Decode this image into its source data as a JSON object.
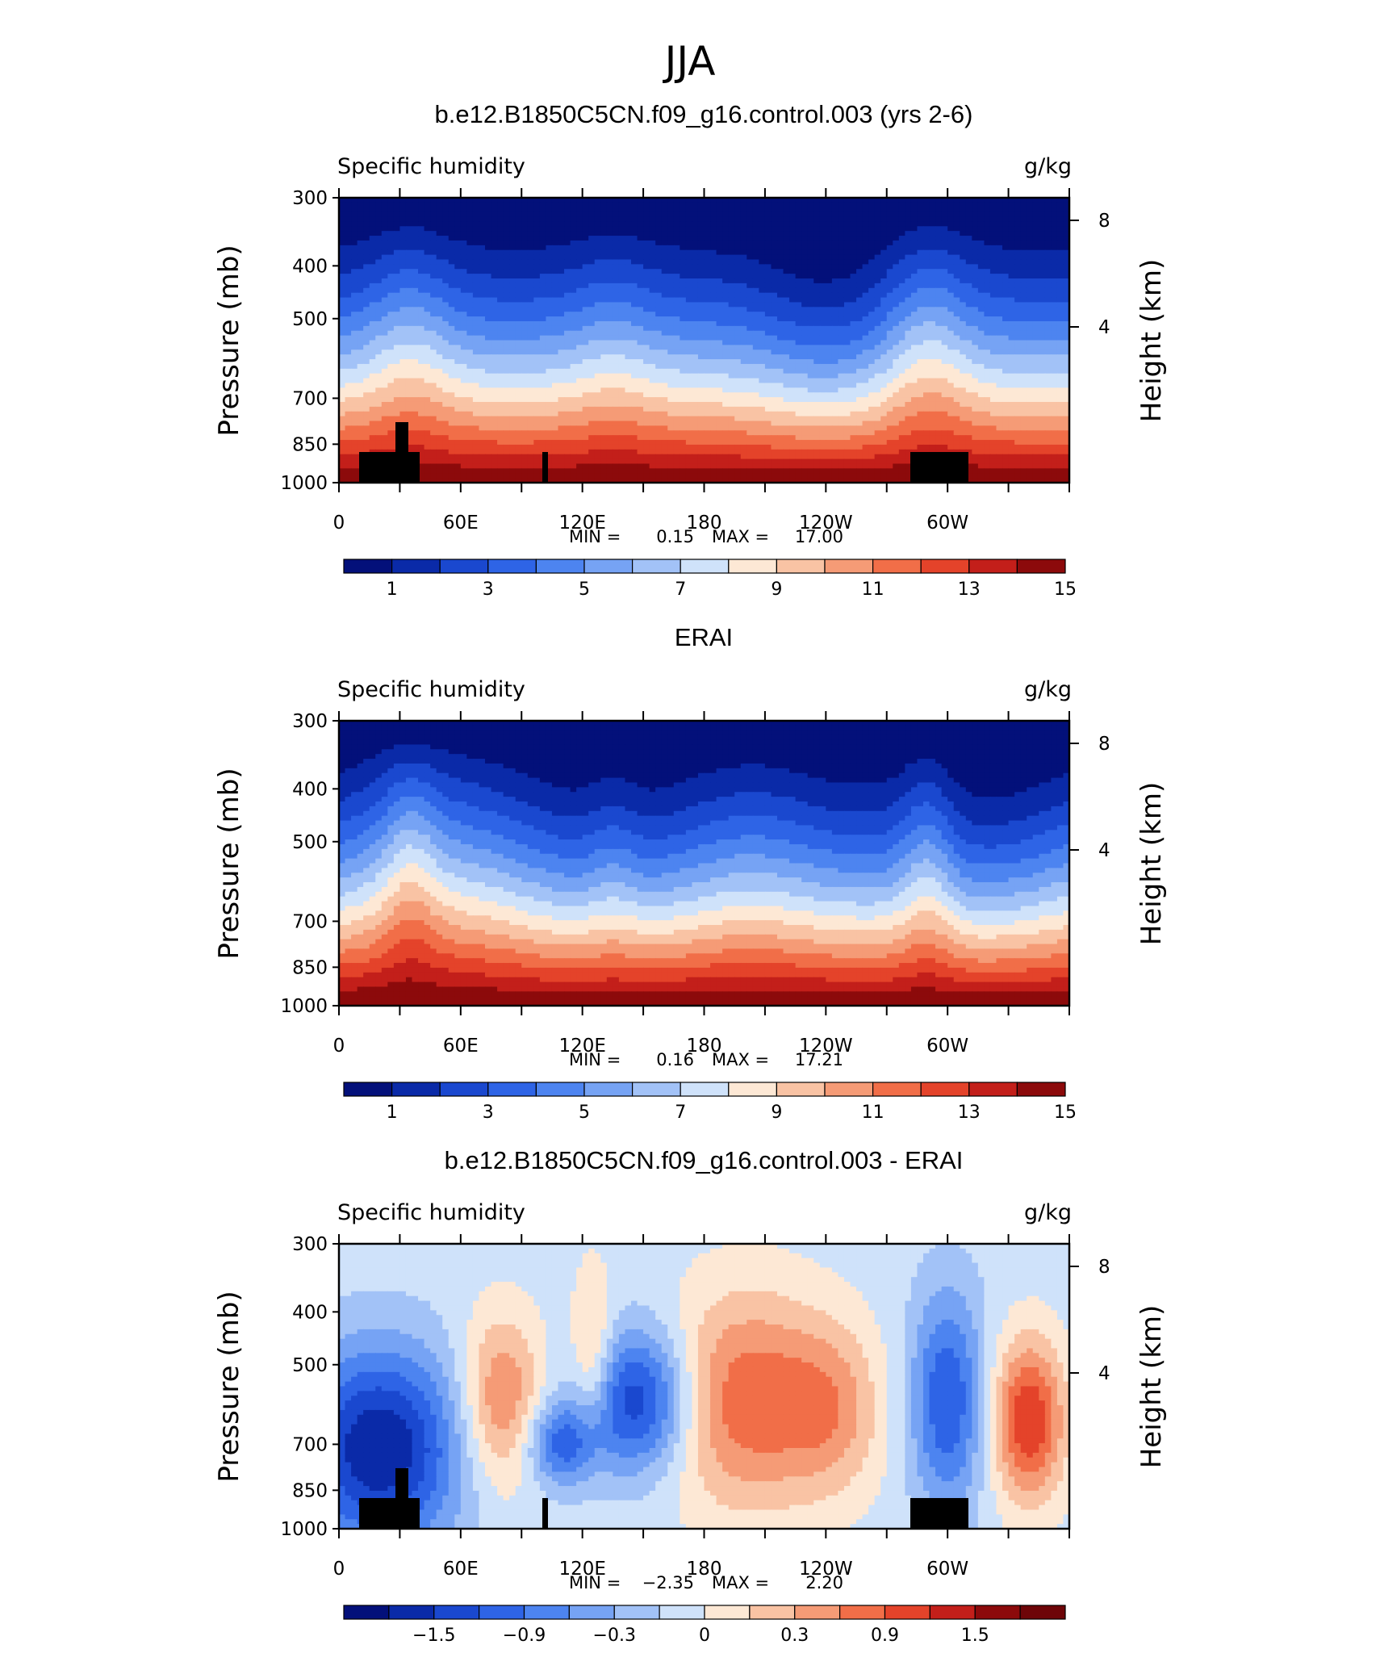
{
  "figure_title": "JJA",
  "chart_data": [
    {
      "type": "heatmap",
      "title": "b.e12.B1850C5CN.f09_g16.control.003 (yrs 2-6)",
      "subtitle_left": "Specific humidity",
      "subtitle_right": "g/kg",
      "ylabel": "Pressure (mb)",
      "ylabel_right": "Height (km)",
      "yticks": [
        300,
        400,
        500,
        700,
        850,
        1000
      ],
      "yticks_right": [
        8,
        4
      ],
      "xticks": [
        "0",
        "60E",
        "120E",
        "180",
        "120W",
        "60W"
      ],
      "xlim_lon": [
        0,
        360
      ],
      "ylim_mb": [
        300,
        1000
      ],
      "stats": {
        "min_label": "MIN =",
        "min": "0.15",
        "max_label": "MAX =",
        "max": "17.00"
      },
      "colorbar": {
        "labels": [
          "1",
          "3",
          "5",
          "7",
          "9",
          "11",
          "13",
          "15"
        ],
        "colors": [
          "#03107a",
          "#0a2aa8",
          "#1a48cf",
          "#2e64e6",
          "#4d84f0",
          "#76a3f4",
          "#a2c2f7",
          "#cfe2fa",
          "#fde8d5",
          "#f9c3a4",
          "#f59b76",
          "#f16e48",
          "#e4432a",
          "#c31f1a",
          "#8c0a0b"
        ]
      },
      "terrain": true
    },
    {
      "type": "heatmap",
      "title": "ERAI",
      "subtitle_left": "Specific humidity",
      "subtitle_right": "g/kg",
      "ylabel": "Pressure (mb)",
      "ylabel_right": "Height (km)",
      "yticks": [
        300,
        400,
        500,
        700,
        850,
        1000
      ],
      "yticks_right": [
        8,
        4
      ],
      "xticks": [
        "0",
        "60E",
        "120E",
        "180",
        "120W",
        "60W"
      ],
      "xlim_lon": [
        0,
        360
      ],
      "ylim_mb": [
        300,
        1000
      ],
      "stats": {
        "min_label": "MIN =",
        "min": "0.16",
        "max_label": "MAX =",
        "max": "17.21"
      },
      "colorbar": {
        "labels": [
          "1",
          "3",
          "5",
          "7",
          "9",
          "11",
          "13",
          "15"
        ],
        "colors": [
          "#03107a",
          "#0a2aa8",
          "#1a48cf",
          "#2e64e6",
          "#4d84f0",
          "#76a3f4",
          "#a2c2f7",
          "#cfe2fa",
          "#fde8d5",
          "#f9c3a4",
          "#f59b76",
          "#f16e48",
          "#e4432a",
          "#c31f1a",
          "#8c0a0b"
        ]
      },
      "terrain": false
    },
    {
      "type": "heatmap",
      "title": "b.e12.B1850C5CN.f09_g16.control.003 - ERAI",
      "subtitle_left": "Specific humidity",
      "subtitle_right": "g/kg",
      "ylabel": "Pressure (mb)",
      "ylabel_right": "Height (km)",
      "yticks": [
        300,
        400,
        500,
        700,
        850,
        1000
      ],
      "yticks_right": [
        8,
        4
      ],
      "xticks": [
        "0",
        "60E",
        "120E",
        "180",
        "120W",
        "60W"
      ],
      "xlim_lon": [
        0,
        360
      ],
      "ylim_mb": [
        300,
        1000
      ],
      "stats": {
        "min_label": "MIN =",
        "min": "−2.35",
        "max_label": "MAX =",
        "max": "2.20"
      },
      "colorbar": {
        "labels": [
          "−1.5",
          "−0.9",
          "−0.3",
          "0",
          "0.3",
          "0.9",
          "1.5"
        ],
        "colors": [
          "#03107a",
          "#0a2aa8",
          "#1a48cf",
          "#2e64e6",
          "#4d84f0",
          "#76a3f4",
          "#a2c2f7",
          "#cfe2fa",
          "#fde8d5",
          "#f9c3a4",
          "#f59b76",
          "#f16e48",
          "#e4432a",
          "#c31f1a",
          "#8c0a0b",
          "#6e0508"
        ]
      },
      "terrain": true
    }
  ]
}
